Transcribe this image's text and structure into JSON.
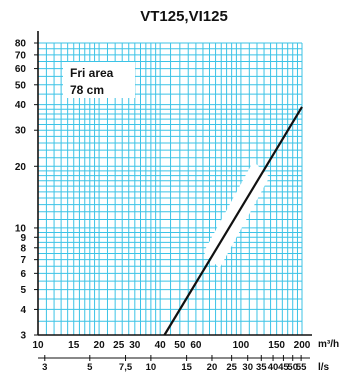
{
  "chart_data": {
    "type": "line",
    "title": "VT125,VI125",
    "annotation": {
      "line1": "Fri area",
      "line2": "78 cm"
    },
    "x_scale": "log",
    "y_scale": "log",
    "xlim": [
      10,
      200
    ],
    "ylim": [
      3,
      80
    ],
    "x_unit": "m³/h",
    "secondary_x_unit": "l/s",
    "y_ticks": [
      "80",
      "70",
      "60",
      "50",
      "40",
      "30",
      "20",
      "10",
      "9",
      "8",
      "7",
      "6",
      "5",
      "4",
      "3"
    ],
    "y_tick_values": [
      80,
      70,
      60,
      50,
      40,
      30,
      20,
      10,
      9,
      8,
      7,
      6,
      5,
      4,
      3
    ],
    "x_ticks": [
      "10",
      "15",
      "20",
      "25",
      "30",
      "40",
      "50",
      "60",
      "100",
      "150",
      "200"
    ],
    "x_tick_values": [
      10,
      15,
      20,
      25,
      30,
      40,
      50,
      60,
      100,
      150,
      200
    ],
    "ls_ticks": [
      "3",
      "5",
      "7,5",
      "10",
      "15",
      "20",
      "25",
      "30",
      "35",
      "40",
      "45",
      "50",
      "55"
    ],
    "ls_tick_values": [
      3,
      5,
      7.5,
      10,
      15,
      20,
      25,
      30,
      35,
      40,
      45,
      50,
      55
    ],
    "grid": true,
    "colors": {
      "grid": "#3cc3e6",
      "line": "#111111",
      "axis": "#111111",
      "highlight": "#ffffff"
    },
    "series": [
      {
        "x": [
          42,
          200
        ],
        "y": [
          3,
          39
        ]
      }
    ]
  }
}
